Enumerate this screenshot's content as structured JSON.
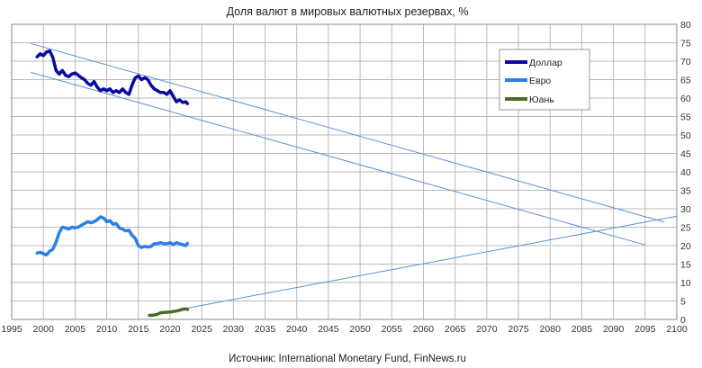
{
  "chart_data": {
    "type": "line",
    "title": "Доля валют в мировых валютных резервах, %",
    "source": "Источник: International Monetary Fund, FinNews.ru",
    "xlim": [
      1995,
      2100
    ],
    "ylim": [
      0,
      80
    ],
    "x_ticks": [
      "1995",
      "2000",
      "2005",
      "2010",
      "2015",
      "2020",
      "2025",
      "2030",
      "2035",
      "2040",
      "2045",
      "2050",
      "2055",
      "2060",
      "2065",
      "2070",
      "2075",
      "2080",
      "2085",
      "2090",
      "2095",
      "2100"
    ],
    "y_ticks": [
      "0",
      "5",
      "10",
      "15",
      "20",
      "25",
      "30",
      "35",
      "40",
      "45",
      "50",
      "55",
      "60",
      "65",
      "70",
      "75",
      "80"
    ],
    "grid": true,
    "y_axis_side": "right",
    "legend_position": "top-right",
    "series": [
      {
        "name": "Доллар",
        "color": "#0a0aa0",
        "x": [
          1999.0,
          1999.5,
          2000.0,
          2000.5,
          2001.0,
          2001.5,
          2002.0,
          2002.5,
          2003.0,
          2003.5,
          2004.0,
          2004.5,
          2005.0,
          2005.5,
          2006.0,
          2006.5,
          2007.0,
          2007.5,
          2008.0,
          2008.5,
          2009.0,
          2009.5,
          2010.0,
          2010.5,
          2011.0,
          2011.5,
          2012.0,
          2012.5,
          2013.0,
          2013.5,
          2014.0,
          2014.5,
          2015.0,
          2015.5,
          2016.0,
          2016.5,
          2017.0,
          2017.5,
          2018.0,
          2018.5,
          2019.0,
          2019.5,
          2020.0,
          2020.5,
          2021.0,
          2021.5,
          2022.0,
          2022.5,
          2022.75
        ],
        "values": [
          71.2,
          72.0,
          71.5,
          72.5,
          72.8,
          71.0,
          67.5,
          66.5,
          67.5,
          66.2,
          65.8,
          66.5,
          66.8,
          66.2,
          65.5,
          65.0,
          64.0,
          63.5,
          64.5,
          63.0,
          62.0,
          62.5,
          62.0,
          62.5,
          61.5,
          62.0,
          61.5,
          62.5,
          61.5,
          61.0,
          63.5,
          65.5,
          66.0,
          65.0,
          65.5,
          65.0,
          63.5,
          62.5,
          62.0,
          61.5,
          61.5,
          61.0,
          62.0,
          60.5,
          59.0,
          59.5,
          58.8,
          59.0,
          58.5
        ]
      },
      {
        "name": "Евро",
        "color": "#2b7fe8",
        "x": [
          1999.0,
          1999.5,
          2000.0,
          2000.5,
          2001.0,
          2001.5,
          2002.0,
          2002.5,
          2003.0,
          2003.5,
          2004.0,
          2004.5,
          2005.0,
          2005.5,
          2006.0,
          2006.5,
          2007.0,
          2007.5,
          2008.0,
          2008.5,
          2009.0,
          2009.5,
          2010.0,
          2010.5,
          2011.0,
          2011.5,
          2012.0,
          2012.5,
          2013.0,
          2013.5,
          2014.0,
          2014.5,
          2015.0,
          2015.5,
          2016.0,
          2016.5,
          2017.0,
          2017.5,
          2018.0,
          2018.5,
          2019.0,
          2019.5,
          2020.0,
          2020.5,
          2021.0,
          2021.5,
          2022.0,
          2022.5,
          2022.75
        ],
        "values": [
          18.0,
          18.2,
          17.8,
          17.5,
          18.5,
          19.0,
          21.0,
          23.5,
          25.0,
          24.8,
          24.5,
          25.0,
          24.8,
          25.0,
          25.5,
          26.0,
          26.5,
          26.2,
          26.5,
          27.0,
          27.8,
          27.5,
          26.5,
          26.8,
          25.8,
          26.0,
          24.8,
          24.5,
          24.0,
          24.2,
          22.8,
          22.0,
          20.0,
          19.5,
          19.8,
          19.6,
          19.8,
          20.5,
          20.5,
          20.8,
          20.5,
          20.5,
          20.8,
          20.3,
          20.8,
          20.5,
          20.3,
          20.0,
          20.6
        ]
      },
      {
        "name": "Юань",
        "color": "#4a6b2a",
        "x": [
          2016.75,
          2017.0,
          2017.5,
          2018.0,
          2018.5,
          2019.0,
          2019.5,
          2020.0,
          2020.5,
          2021.0,
          2021.5,
          2022.0,
          2022.5,
          2022.75
        ],
        "values": [
          1.1,
          1.1,
          1.2,
          1.4,
          1.8,
          1.9,
          1.95,
          2.0,
          2.15,
          2.3,
          2.5,
          2.75,
          2.85,
          2.7
        ]
      }
    ],
    "trend_lines": [
      {
        "x": [
          1998,
          2098
        ],
        "values": [
          74.8,
          26.4
        ]
      },
      {
        "x": [
          1998,
          2095
        ],
        "values": [
          67.0,
          20.2
        ]
      },
      {
        "x": [
          2022.5,
          2100
        ],
        "values": [
          3.0,
          28.0
        ]
      }
    ],
    "colors": {
      "trend": "#5b8fd6",
      "grid": "#b8b8b8"
    }
  }
}
